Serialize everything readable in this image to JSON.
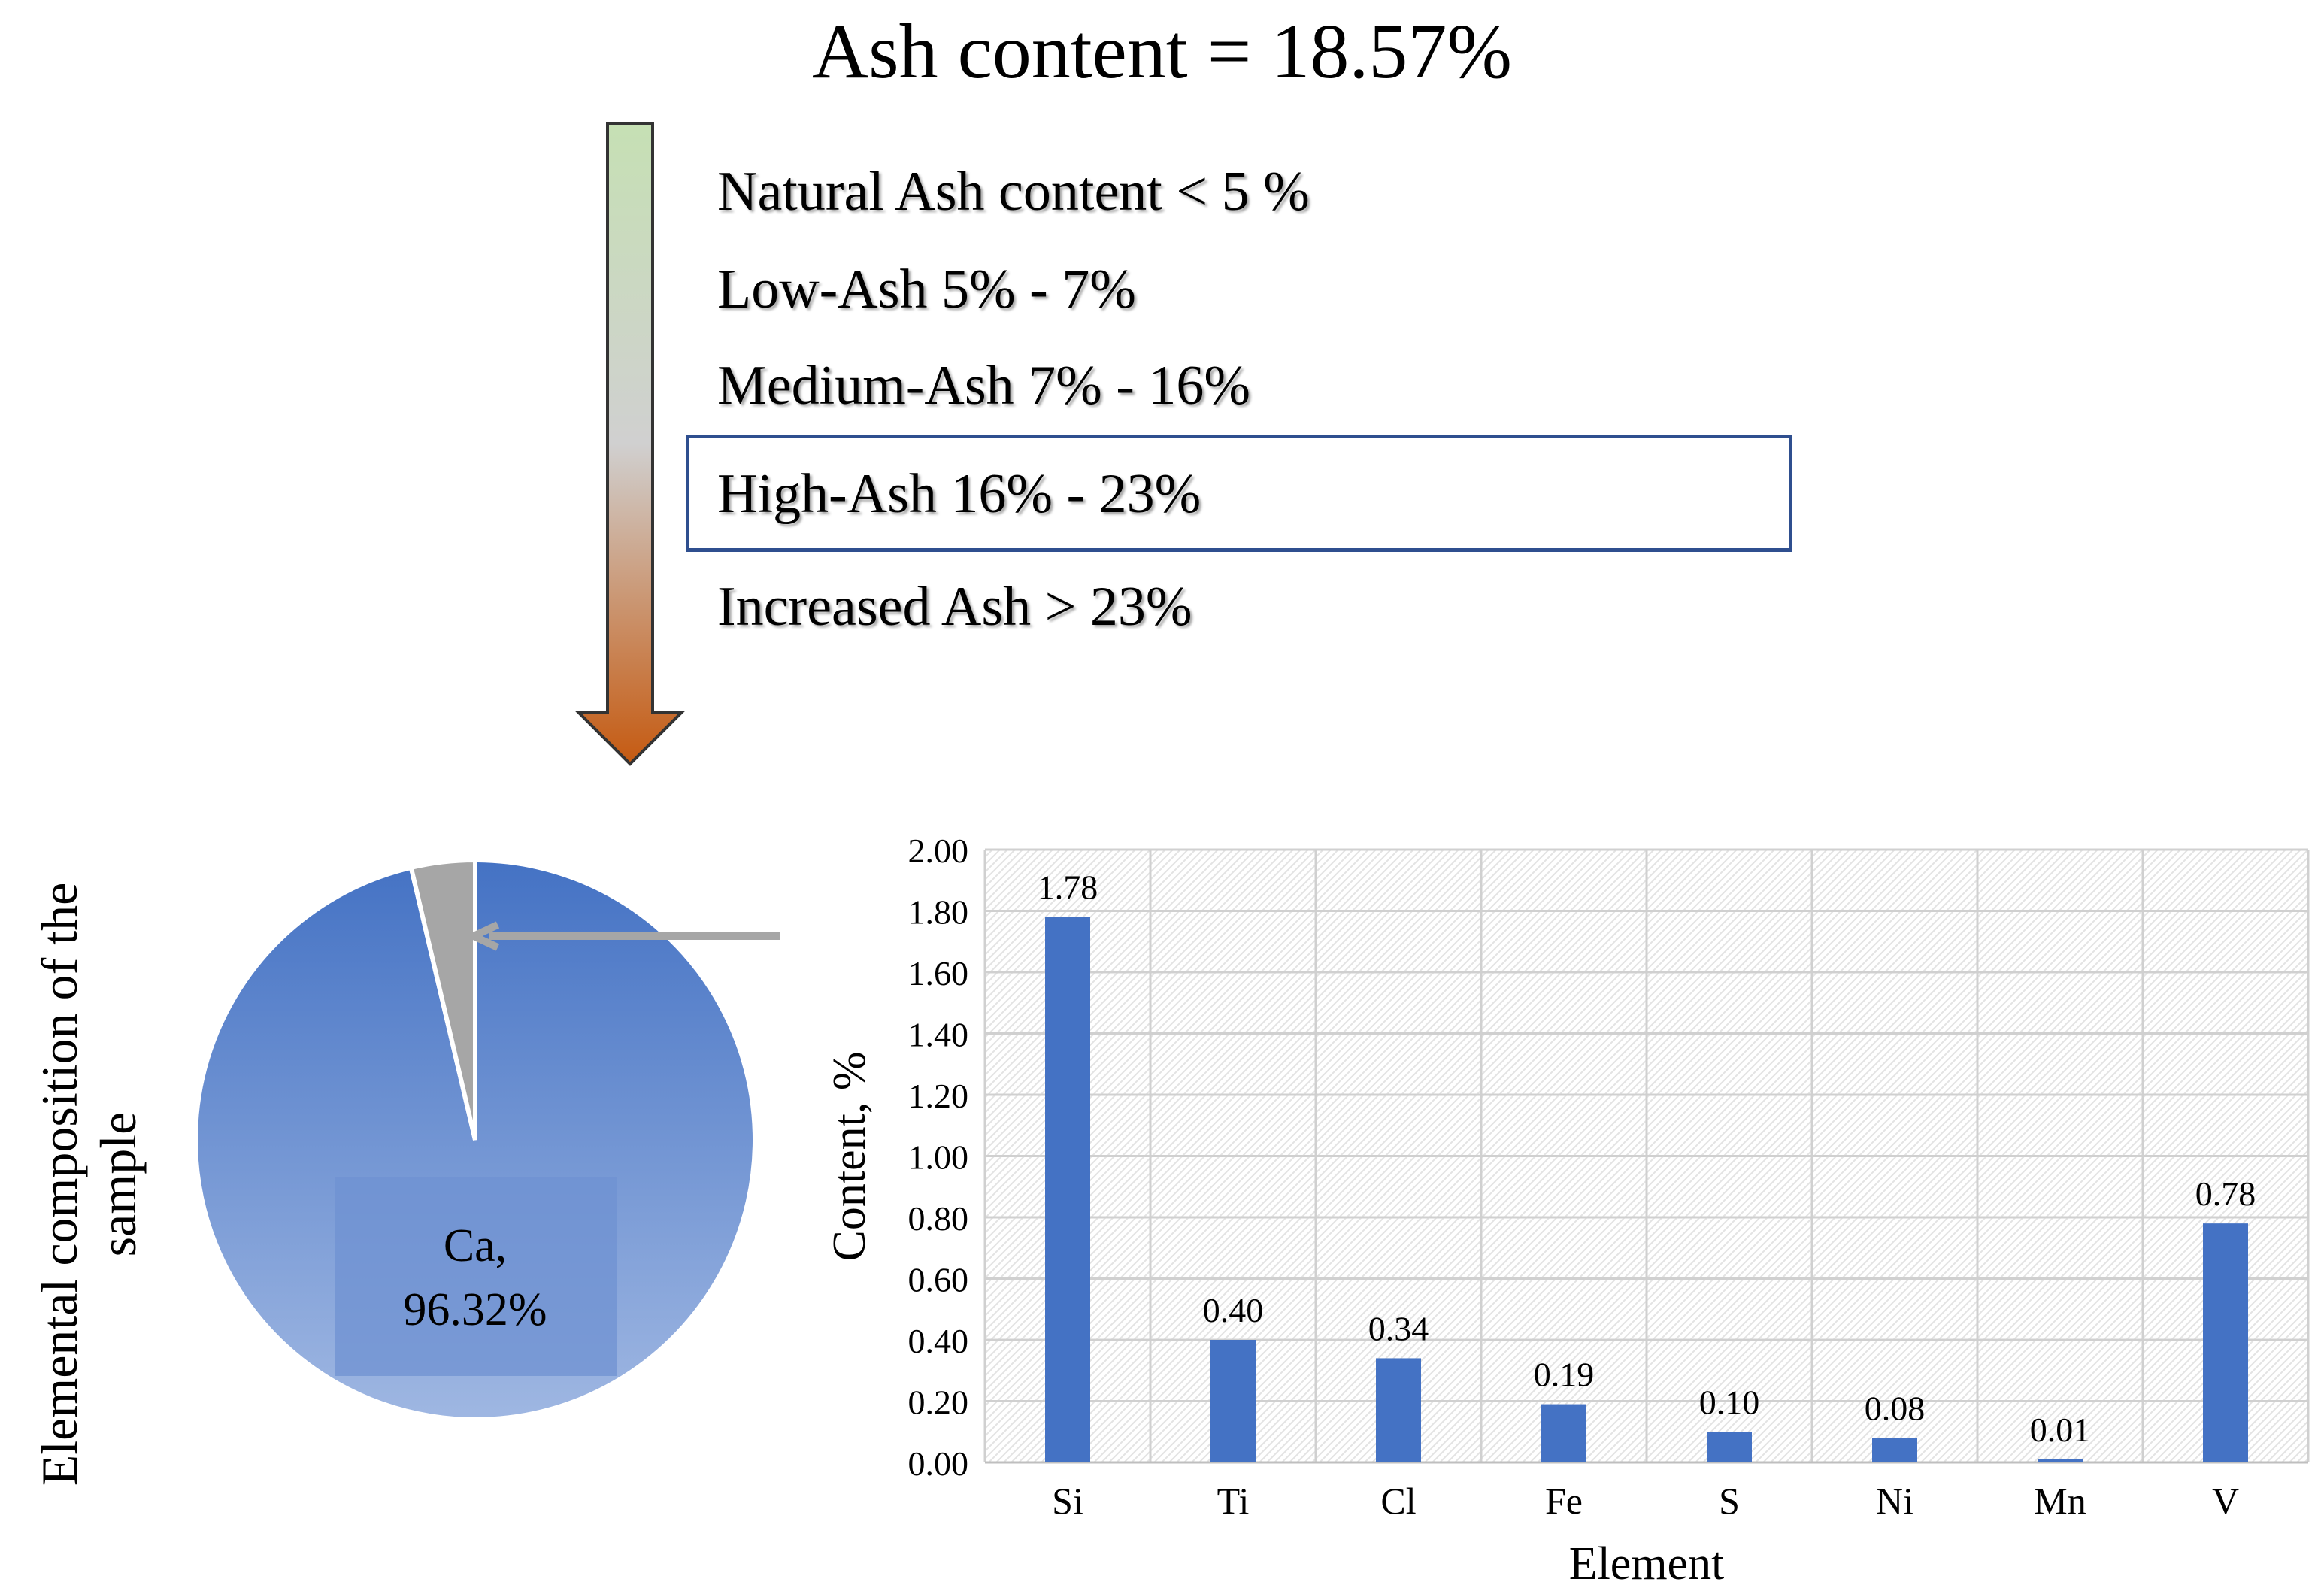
{
  "title": "Ash content = 18.57%",
  "classification": [
    {
      "label": "Natural Ash content < 5 %",
      "highlighted": false
    },
    {
      "label": "Low-Ash 5% - 7%",
      "highlighted": false
    },
    {
      "label": "Medium-Ash 7% - 16%",
      "highlighted": false
    },
    {
      "label": "High-Ash 16% - 23%",
      "highlighted": true
    },
    {
      "label": "Increased Ash > 23%",
      "highlighted": false
    }
  ],
  "colors": {
    "arrow_top": "#c6e0b4",
    "arrow_mid": "#d0d0d0",
    "arrow_bottom": "#c55a11",
    "bar": "#4472c4",
    "pie_main": "#4472c4",
    "pie_other": "#a6a6a6",
    "box": "#2f4f8f"
  },
  "pie_caption_lines": [
    "Elemental composition of the",
    "sample"
  ],
  "chart_data": [
    {
      "type": "pie",
      "slices": [
        {
          "label": "Ca",
          "value": 96.32
        },
        {
          "label": "",
          "value": 3.68
        }
      ],
      "data_label_lines": [
        "Ca,",
        "96.32%"
      ]
    },
    {
      "type": "bar",
      "categories": [
        "Si",
        "Ti",
        "Cl",
        "Fe",
        "S",
        "Ni",
        "Mn",
        "V"
      ],
      "values": [
        1.78,
        0.4,
        0.34,
        0.19,
        0.1,
        0.08,
        0.01,
        0.78
      ],
      "value_labels": [
        "1.78",
        "0.40",
        "0.34",
        "0.19",
        "0.10",
        "0.08",
        "0.01",
        "0.78"
      ],
      "xlabel": "Element",
      "ylabel": "Content, %",
      "ylim": [
        0,
        2.0
      ],
      "y_ticks": [
        "0.00",
        "0.20",
        "0.40",
        "0.60",
        "0.80",
        "1.00",
        "1.20",
        "1.40",
        "1.60",
        "1.80",
        "2.00"
      ],
      "grid": true,
      "plot_background": "hatched"
    }
  ]
}
